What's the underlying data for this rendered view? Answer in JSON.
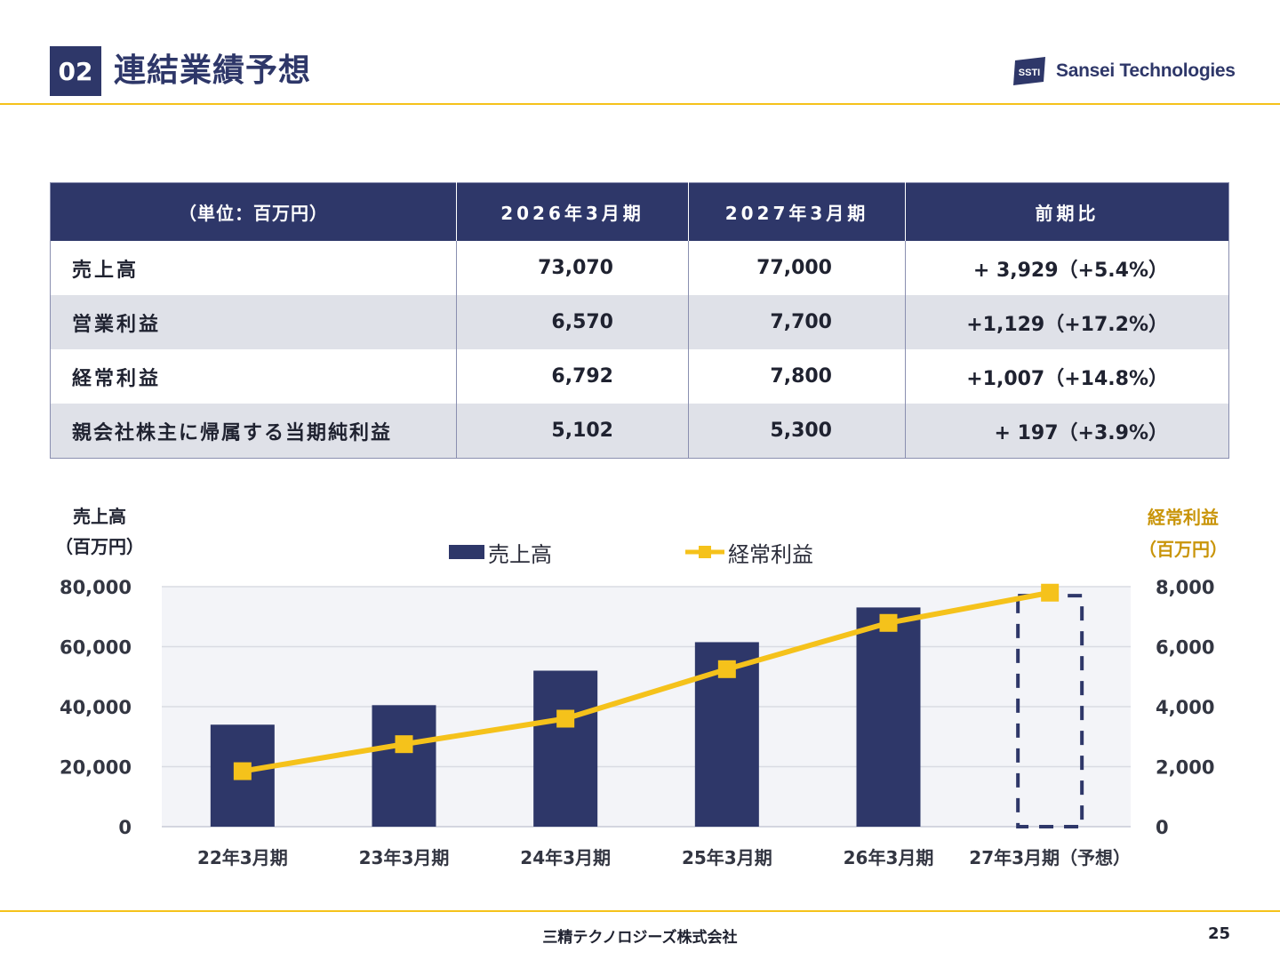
{
  "header": {
    "section_number": "02",
    "title": "連結業績予想",
    "logo_text": "Sansei Technologies",
    "logo_mark": "SSTI"
  },
  "table": {
    "columns": [
      "（単位：百万円）",
      "2026年3月期",
      "2027年3月期",
      "前期比"
    ],
    "rows": [
      {
        "label": "売上高",
        "fy2026": "73,070",
        "fy2027": "77,000",
        "change": "+ 3,929（+5.4%）"
      },
      {
        "label": "営業利益",
        "fy2026": "6,570",
        "fy2027": "7,700",
        "change": "+1,129（+17.2%）"
      },
      {
        "label": "経常利益",
        "fy2026": "6,792",
        "fy2027": "7,800",
        "change": "+1,007（+14.8%）"
      },
      {
        "label": "親会社株主に帰属する当期純利益",
        "fy2026": "5,102",
        "fy2027": "5,300",
        "change": "+ 197（+3.9%）"
      }
    ]
  },
  "chart_data": {
    "type": "bar",
    "categories": [
      "22年3月期",
      "23年3月期",
      "24年3月期",
      "25年3月期",
      "26年3月期",
      "27年3月期（予想）"
    ],
    "series": [
      {
        "name": "売上高",
        "type": "bar",
        "axis": "left",
        "values": [
          34000,
          40500,
          52000,
          61500,
          73070,
          77000
        ],
        "forecast_last": true
      },
      {
        "name": "経常利益",
        "type": "line",
        "axis": "right",
        "values": [
          1850,
          2750,
          3600,
          5250,
          6792,
          7800
        ]
      }
    ],
    "y_left": {
      "title_line1": "売上高",
      "title_line2": "（百万円）",
      "range": [
        0,
        80000
      ],
      "ticks": [
        "0",
        "20,000",
        "40,000",
        "60,000",
        "80,000"
      ]
    },
    "y_right": {
      "title_line1": "経常利益",
      "title_line2": "（百万円）",
      "range": [
        0,
        8000
      ],
      "ticks": [
        "0",
        "2,000",
        "4,000",
        "6,000",
        "8,000"
      ]
    },
    "legend_position": "top-center",
    "grid": true,
    "colors": {
      "bar": "#2e3769",
      "line": "#f5c21b",
      "plot_bg": "#f3f4f8",
      "grid": "#d9dbe3"
    }
  },
  "footer": {
    "company": "三精テクノロジーズ株式会社",
    "page": "25"
  }
}
